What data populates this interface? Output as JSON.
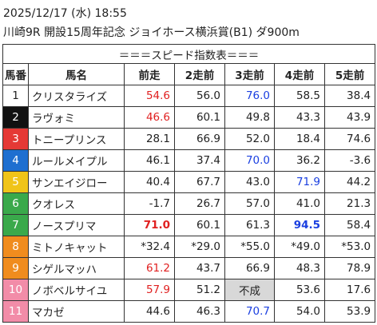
{
  "header": {
    "datetime": "2025/12/17 (水) 18:55",
    "race": "川崎9R 開設15周年記念 ジョイホース横浜賞(B1) ダ900m"
  },
  "table": {
    "title": "＝＝＝スピード指数表＝＝＝",
    "columns": [
      "馬番",
      "馬名",
      "前走",
      "2走前",
      "3走前",
      "4走前",
      "5走前"
    ],
    "rows": [
      [
        "1",
        "クリスタライズ",
        "54.6",
        "56.0",
        "76.0",
        "58.5",
        "38.4"
      ],
      [
        "2",
        "ラヴォミ",
        "46.6",
        "60.1",
        "49.8",
        "43.3",
        "43.9"
      ],
      [
        "3",
        "トニープリンス",
        "28.1",
        "66.9",
        "52.0",
        "18.4",
        "74.6"
      ],
      [
        "4",
        "ルールメイプル",
        "46.1",
        "37.4",
        "70.0",
        "36.2",
        "-3.6"
      ],
      [
        "5",
        "サンエイジロー",
        "40.4",
        "67.7",
        "43.0",
        "71.9",
        "44.2"
      ],
      [
        "6",
        "クオレス",
        "-1.7",
        "26.7",
        "57.0",
        "41.0",
        "21.3"
      ],
      [
        "7",
        "ノースプリマ",
        "71.0",
        "60.1",
        "61.3",
        "94.5",
        "58.4"
      ],
      [
        "8",
        "ミトノキャット",
        "*32.4",
        "*29.0",
        "*55.0",
        "*49.0",
        "*53.0"
      ],
      [
        "9",
        "シゲルマッハ",
        "61.2",
        "43.7",
        "66.9",
        "48.3",
        "78.9"
      ],
      [
        "10",
        "ノボベルサイユ",
        "57.9",
        "51.2",
        "不成",
        "53.6",
        "17.6"
      ],
      [
        "11",
        "マカゼ",
        "44.6",
        "46.3",
        "70.7",
        "54.0",
        "53.9"
      ]
    ]
  }
}
